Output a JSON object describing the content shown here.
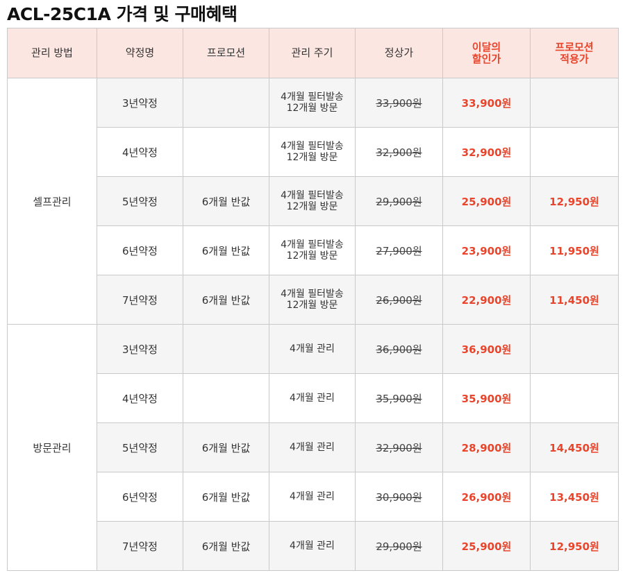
{
  "title": "ACL-25C1A 가격 및 구매혜택",
  "headers": {
    "method": "관리 방법",
    "contract": "약정명",
    "promotion": "프로모션",
    "cycle": "관리 주기",
    "regular": "정상가",
    "discount_line1": "이달의",
    "discount_line2": "할인가",
    "promo_line1": "프로모션",
    "promo_line2": "적용가"
  },
  "colors": {
    "accent": "#e8452c",
    "header_bg": "#fbe6e2",
    "shade_bg": "#f5f5f5"
  },
  "groups": [
    {
      "method": "셀프관리",
      "rows": [
        {
          "contract": "3년약정",
          "promotion": "",
          "cycle_line1": "4개월 필터발송",
          "cycle_line2": "12개월 방문",
          "regular": "33,900원",
          "discount": "33,900원",
          "promo": ""
        },
        {
          "contract": "4년약정",
          "promotion": "",
          "cycle_line1": "4개월 필터발송",
          "cycle_line2": "12개월 방문",
          "regular": "32,900원",
          "discount": "32,900원",
          "promo": ""
        },
        {
          "contract": "5년약정",
          "promotion": "6개월 반값",
          "cycle_line1": "4개월 필터발송",
          "cycle_line2": "12개월 방문",
          "regular": "29,900원",
          "discount": "25,900원",
          "promo": "12,950원"
        },
        {
          "contract": "6년약정",
          "promotion": "6개월 반값",
          "cycle_line1": "4개월 필터발송",
          "cycle_line2": "12개월 방문",
          "regular": "27,900원",
          "discount": "23,900원",
          "promo": "11,950원"
        },
        {
          "contract": "7년약정",
          "promotion": "6개월 반값",
          "cycle_line1": "4개월 필터발송",
          "cycle_line2": "12개월 방문",
          "regular": "26,900원",
          "discount": "22,900원",
          "promo": "11,450원"
        }
      ]
    },
    {
      "method": "방문관리",
      "rows": [
        {
          "contract": "3년약정",
          "promotion": "",
          "cycle_line1": "4개월 관리",
          "cycle_line2": "",
          "regular": "36,900원",
          "discount": "36,900원",
          "promo": ""
        },
        {
          "contract": "4년약정",
          "promotion": "",
          "cycle_line1": "4개월 관리",
          "cycle_line2": "",
          "regular": "35,900원",
          "discount": "35,900원",
          "promo": ""
        },
        {
          "contract": "5년약정",
          "promotion": "6개월 반값",
          "cycle_line1": "4개월 관리",
          "cycle_line2": "",
          "regular": "32,900원",
          "discount": "28,900원",
          "promo": "14,450원"
        },
        {
          "contract": "6년약정",
          "promotion": "6개월 반값",
          "cycle_line1": "4개월 관리",
          "cycle_line2": "",
          "regular": "30,900원",
          "discount": "26,900원",
          "promo": "13,450원"
        },
        {
          "contract": "7년약정",
          "promotion": "6개월 반값",
          "cycle_line1": "4개월 관리",
          "cycle_line2": "",
          "regular": "29,900원",
          "discount": "25,900원",
          "promo": "12,950원"
        }
      ]
    }
  ]
}
